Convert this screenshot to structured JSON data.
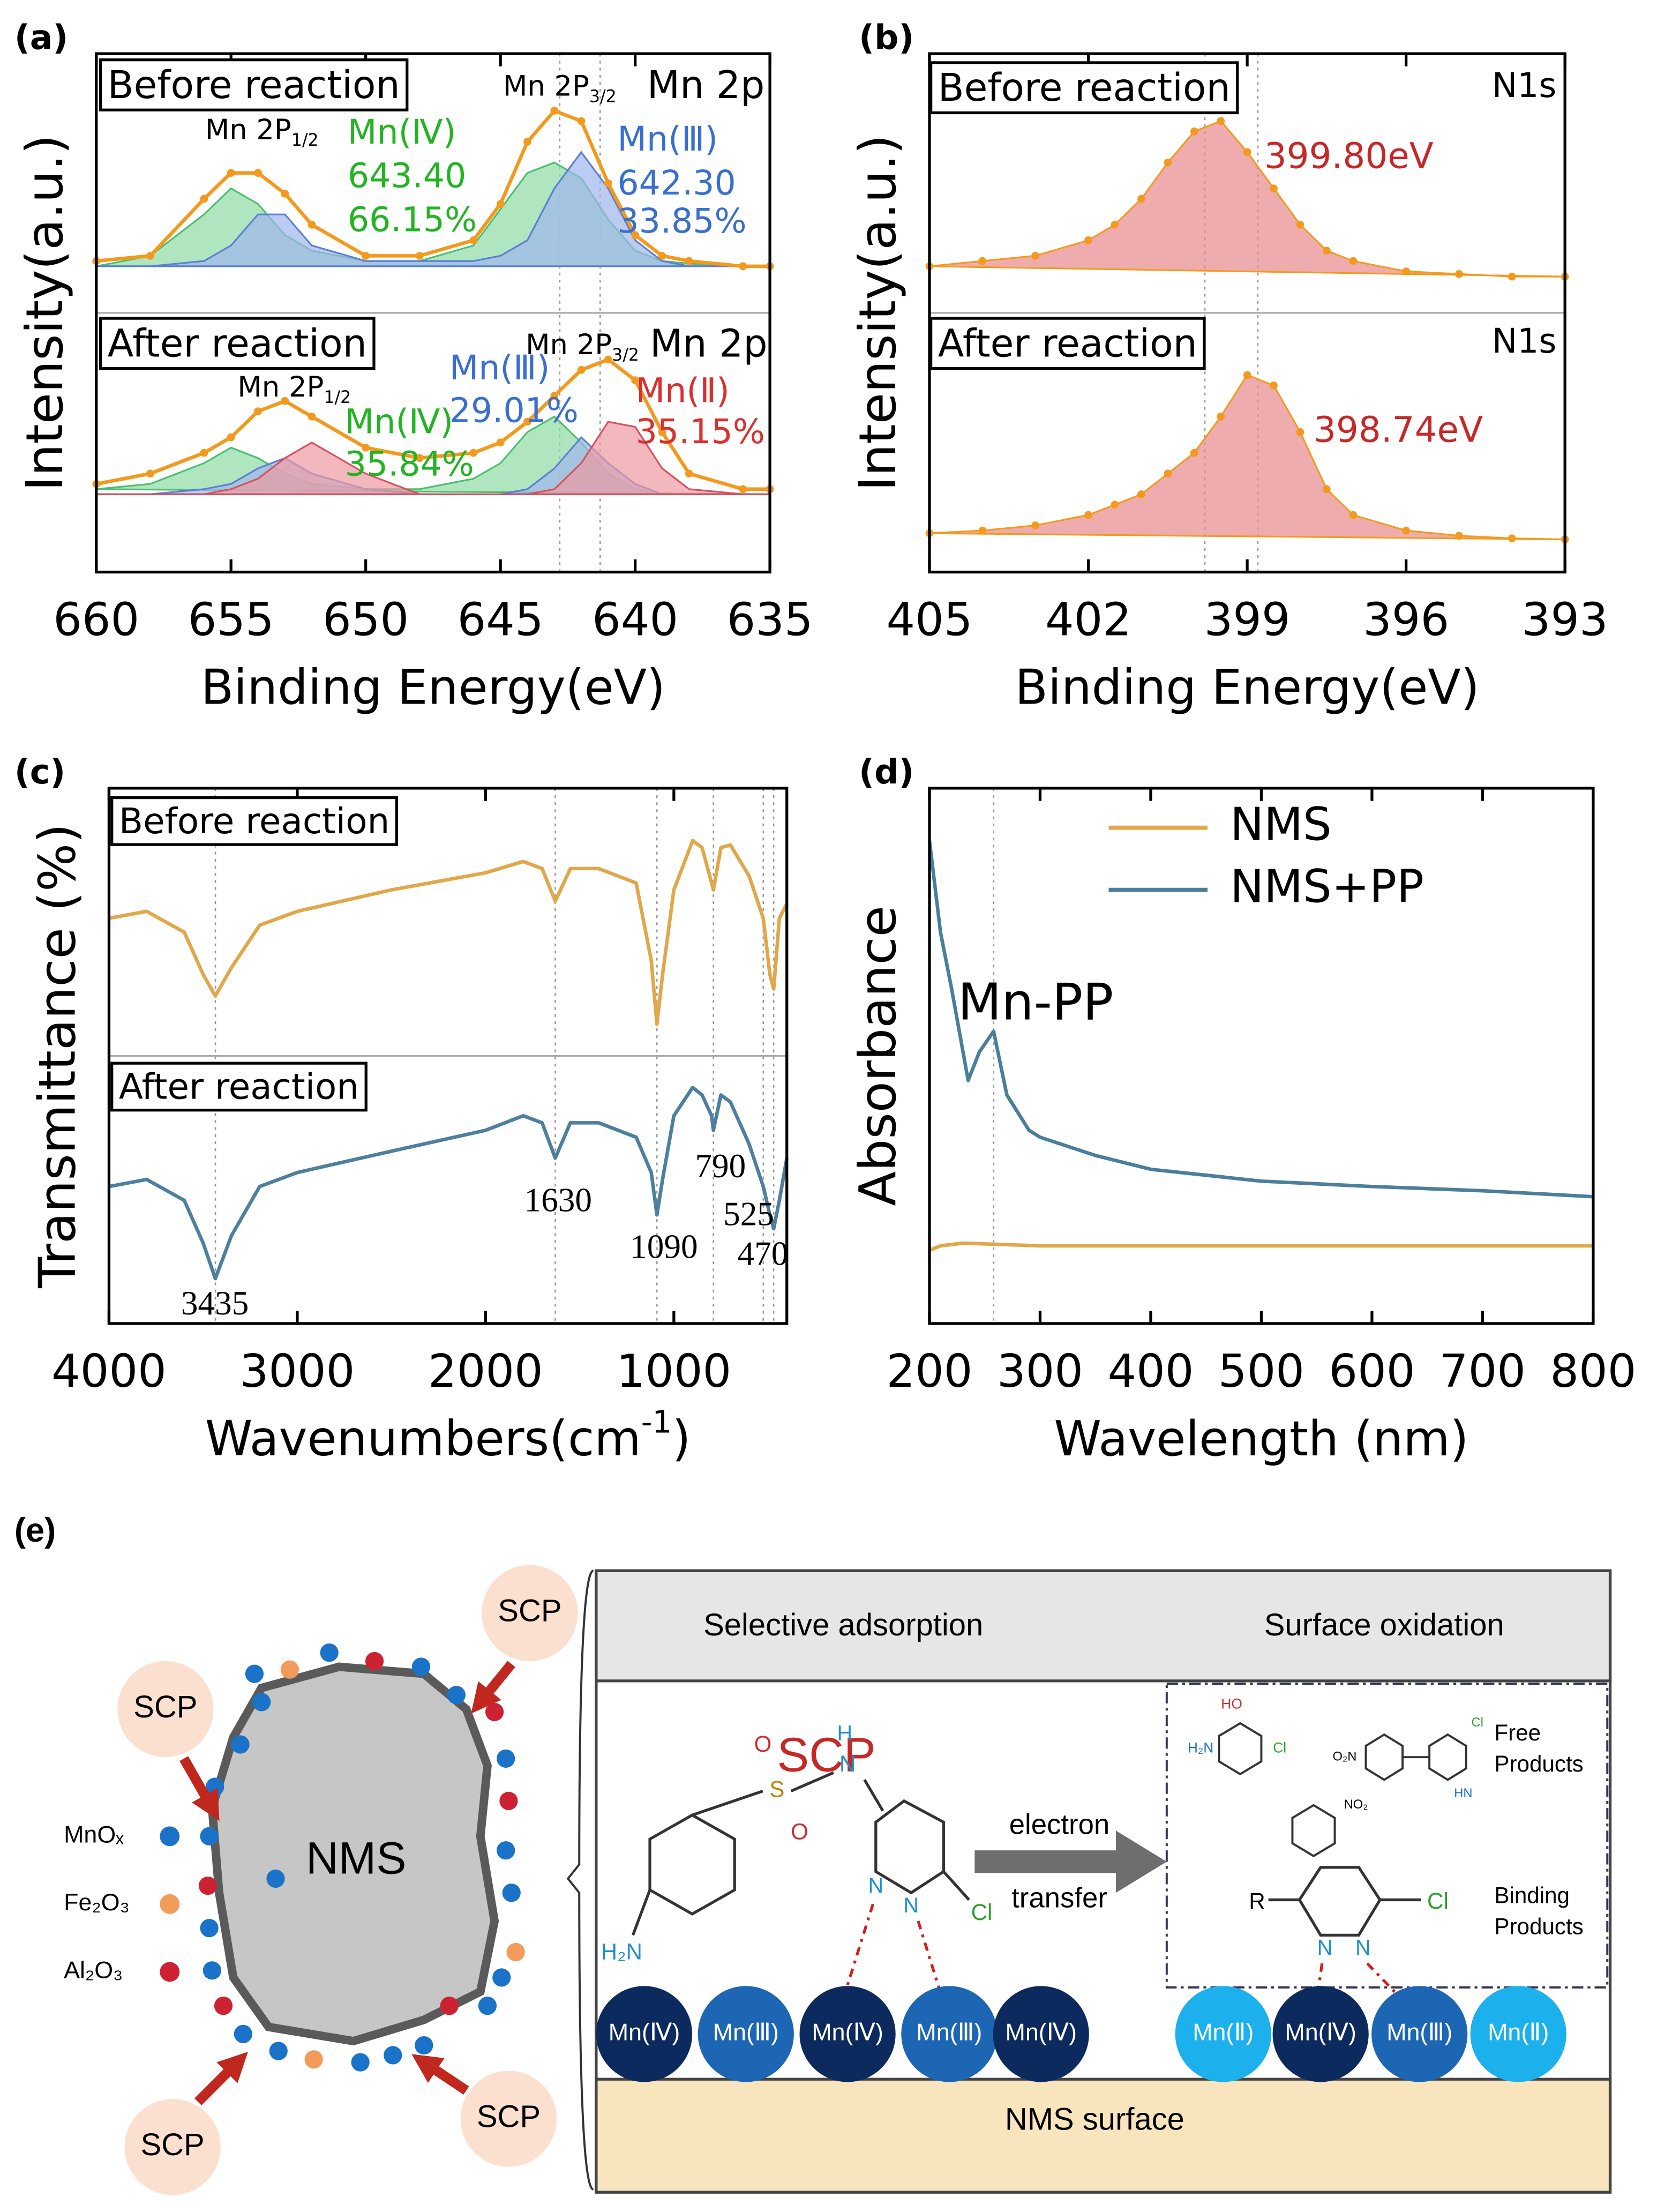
{
  "chart_data": [
    {
      "type": "area",
      "panel_label": "(a)",
      "xlabel": "Binding Energy(eV)",
      "ylabel": "Intensity(a.u.)",
      "xlim": [
        660,
        635
      ],
      "xticks": [
        660,
        655,
        650,
        645,
        640,
        635
      ],
      "ylim": [
        0,
        100
      ],
      "split": true,
      "ref_lines": [
        642.8,
        641.3
      ],
      "x": [
        660,
        658,
        656,
        655,
        654,
        653,
        652,
        650,
        648,
        646,
        645,
        644,
        643,
        642,
        641,
        640,
        639,
        638,
        636,
        635
      ],
      "series": [
        {
          "color": "#4cbf6e",
          "fill": "#8fdca4",
          "values": [
            59,
            61,
            69,
            74,
            71,
            65,
            62,
            60,
            60,
            63,
            70,
            77,
            79,
            76,
            68,
            62,
            60,
            59.5,
            59,
            59
          ]
        },
        {
          "color": "#5a7fd6",
          "fill": "#9fb5ec",
          "values": [
            59,
            59,
            60,
            63,
            69,
            69,
            63,
            60,
            60,
            60,
            61,
            64,
            74,
            81,
            74,
            64,
            60,
            59,
            59,
            59
          ]
        },
        {
          "color": "#f39a1e",
          "markers": true,
          "values": [
            60,
            61,
            72,
            77,
            77,
            73,
            67,
            61,
            61,
            64,
            71,
            83,
            89,
            87,
            75,
            65,
            61,
            60,
            59,
            59
          ]
        },
        {
          "color": "#4cbf6e",
          "fill": "#8fdca4",
          "values": [
            16,
            17,
            21,
            24,
            22,
            19,
            17,
            16,
            16,
            18,
            21,
            27,
            30,
            25,
            19,
            16,
            15,
            15,
            15,
            15
          ]
        },
        {
          "color": "#5a7fd6",
          "fill": "#9fb5ec",
          "values": [
            15,
            15,
            16,
            17,
            20,
            22,
            19,
            16,
            15,
            15,
            15,
            16,
            20,
            26,
            21,
            17,
            15,
            15,
            15,
            15
          ]
        },
        {
          "color": "#d9505e",
          "fill": "#ec9aa3",
          "values": [
            15,
            15,
            15,
            16,
            18,
            22,
            25,
            19,
            15,
            15,
            15,
            15,
            16,
            21,
            29,
            28,
            20,
            16,
            15,
            15
          ]
        },
        {
          "color": "#f39a1e",
          "markers": true,
          "values": [
            17,
            19,
            23,
            26,
            31,
            33,
            30,
            24,
            22,
            23,
            25,
            29,
            34,
            39,
            41,
            37,
            27,
            19,
            16,
            16
          ]
        }
      ],
      "annotations": [
        {
          "text": "Before reaction",
          "color": "#000000",
          "boxed": true
        },
        {
          "text": "Mn 2P",
          "sub": "1/2",
          "color": "#000000"
        },
        {
          "text": "Mn 2P",
          "sub": "3/2",
          "color": "#000000"
        },
        {
          "text": "Mn 2p",
          "color": "#000000"
        },
        {
          "text": "Mn(Ⅳ)",
          "color": "#22b422"
        },
        {
          "text": "643.40",
          "color": "#22b422"
        },
        {
          "text": "66.15%",
          "color": "#22b422"
        },
        {
          "text": "Mn(Ⅲ)",
          "color": "#3a6fd0"
        },
        {
          "text": "642.30",
          "color": "#3a6fd0"
        },
        {
          "text": "33.85%",
          "color": "#3a6fd0"
        },
        {
          "text": "After reaction",
          "color": "#000000",
          "boxed": true
        },
        {
          "text": "Mn 2P",
          "sub": "1/2",
          "color": "#000000"
        },
        {
          "text": "Mn 2P",
          "sub": "3/2",
          "color": "#000000"
        },
        {
          "text": "Mn 2p",
          "color": "#000000"
        },
        {
          "text": "Mn(Ⅳ)",
          "color": "#22b422"
        },
        {
          "text": "35.84%",
          "color": "#22b422"
        },
        {
          "text": "Mn(Ⅲ)",
          "color": "#3a6fd0"
        },
        {
          "text": "29.01%",
          "color": "#3a6fd0"
        },
        {
          "text": "Mn(Ⅱ)",
          "color": "#d93030"
        },
        {
          "text": "35.15%",
          "color": "#d93030"
        }
      ]
    },
    {
      "type": "area",
      "panel_label": "(b)",
      "xlabel": "Binding Energy(eV)",
      "ylabel": "Intensity(a.u.)",
      "xlim": [
        405,
        393
      ],
      "xticks": [
        405,
        402,
        399,
        396,
        393
      ],
      "ylim": [
        0,
        100
      ],
      "split": true,
      "ref_lines": [
        399.8,
        398.8
      ],
      "x": [
        405,
        404,
        403,
        402,
        401.5,
        401,
        400.5,
        400,
        399.5,
        399,
        398.5,
        398,
        397.5,
        397,
        396,
        395,
        394,
        393
      ],
      "series": [
        {
          "color": "#f39a1e",
          "fill": "#e8898b",
          "markers": true,
          "values": [
            59,
            60,
            61,
            64,
            67,
            72,
            79,
            85,
            87,
            81,
            74,
            67,
            62,
            60,
            58,
            57.5,
            57,
            57
          ]
        },
        {
          "color": "#f39a1e",
          "fill": "#e8898b",
          "markers": true,
          "values": [
            7.5,
            8,
            9,
            11,
            13,
            15,
            19,
            23,
            30,
            38,
            36,
            27,
            16,
            11,
            8,
            7,
            6.5,
            6.3
          ]
        }
      ],
      "annotations": [
        {
          "text": "Before reaction",
          "color": "#000000",
          "boxed": true
        },
        {
          "text": "N1s",
          "color": "#000000"
        },
        {
          "text": "399.80eV",
          "color": "#c62828"
        },
        {
          "text": "After reaction",
          "color": "#000000",
          "boxed": true
        },
        {
          "text": "N1s",
          "color": "#000000"
        },
        {
          "text": "398.74eV",
          "color": "#c62828"
        }
      ]
    },
    {
      "type": "line",
      "panel_label": "(c)",
      "xlabel": [
        "Wavenumbers(cm",
        "-1",
        ")"
      ],
      "ylabel": "Transmittance (%)",
      "xlim": [
        4000,
        400
      ],
      "xticks": [
        4000,
        3000,
        2000,
        1000
      ],
      "ylim": [
        0,
        100
      ],
      "split": true,
      "ref_lines": [
        3435,
        1630,
        1090,
        790,
        525,
        470
      ],
      "x": [
        4000,
        3800,
        3600,
        3500,
        3435,
        3350,
        3200,
        3000,
        2500,
        2000,
        1800,
        1700,
        1630,
        1550,
        1400,
        1200,
        1120,
        1090,
        1060,
        1000,
        900,
        850,
        800,
        790,
        750,
        700,
        600,
        525,
        490,
        470,
        440,
        400
      ],
      "series": [
        {
          "color": "#e0a84a",
          "values": [
            75.7,
            77.0,
            73.1,
            65.2,
            61.2,
            66.5,
            74.4,
            77.0,
            81.0,
            84.2,
            86.3,
            85.0,
            78.9,
            85.0,
            85.0,
            82.3,
            67.8,
            55.9,
            65.2,
            81.0,
            90.2,
            88.9,
            82.3,
            81.0,
            88.9,
            89.4,
            83.6,
            75.7,
            65.2,
            62.5,
            75.7,
            78.4
          ]
        },
        {
          "color": "#4d7f9e",
          "values": [
            25.6,
            26.9,
            23.0,
            15.0,
            8.4,
            16.4,
            25.6,
            28.2,
            32.2,
            36.1,
            38.8,
            37.5,
            30.9,
            37.5,
            37.5,
            34.8,
            28.2,
            20.3,
            26.9,
            38.8,
            44.1,
            42.7,
            38.8,
            36.1,
            42.7,
            41.4,
            33.5,
            25.6,
            20.3,
            17.7,
            23.0,
            30.9
          ]
        }
      ],
      "annotations": [
        {
          "text": "Before reaction",
          "color": "#000000",
          "boxed": true
        },
        {
          "text": "After reaction",
          "color": "#000000",
          "boxed": true
        },
        {
          "text": "3435",
          "color": "#000000",
          "font": "serif"
        },
        {
          "text": "1630",
          "color": "#000000",
          "font": "serif"
        },
        {
          "text": "1090",
          "color": "#000000",
          "font": "serif"
        },
        {
          "text": "790",
          "color": "#000000",
          "font": "serif"
        },
        {
          "text": "525",
          "color": "#000000",
          "font": "serif"
        },
        {
          "text": "470",
          "color": "#000000",
          "font": "serif"
        }
      ]
    },
    {
      "type": "line",
      "panel_label": "(d)",
      "xlabel": "Wavelength (nm)",
      "ylabel": "Absorbance",
      "xlim": [
        200,
        800
      ],
      "xticks": [
        200,
        300,
        400,
        500,
        600,
        700,
        800
      ],
      "ylim": [
        0,
        100
      ],
      "ref_lines": [
        258
      ],
      "legend": "upper center",
      "series": [
        {
          "name": "NMS",
          "color": "#e0a84a",
          "x": [
            200,
            210,
            230,
            300,
            400,
            500,
            600,
            700,
            800
          ],
          "values": [
            13.7,
            14.5,
            15.0,
            14.5,
            14.5,
            14.5,
            14.5,
            14.5,
            14.5
          ]
        },
        {
          "name": "NMS+PP",
          "color": "#4a7f9b",
          "x": [
            200,
            210,
            220,
            235,
            245,
            258,
            270,
            290,
            300,
            350,
            400,
            500,
            600,
            700,
            800
          ],
          "values": [
            90.2,
            73.1,
            62.5,
            45.4,
            50.7,
            54.6,
            42.7,
            36.1,
            34.8,
            31.4,
            28.8,
            26.6,
            25.6,
            24.8,
            23.7
          ]
        }
      ],
      "annotations": [
        {
          "text": "Mn-PP",
          "color": "#000000"
        }
      ]
    }
  ],
  "diagram": {
    "label": "(e)",
    "particle": "NMS",
    "scp": [
      "SCP",
      "SCP",
      "SCP",
      "SCP"
    ],
    "legend": [
      "MnOₓ",
      "Fe₂O₃",
      "Al₂O₃"
    ],
    "headers": [
      "Selective adsorption",
      "Surface oxidation"
    ],
    "molecule": "SCP",
    "scp_atoms": [
      "O",
      "S",
      "O",
      "H",
      "N",
      "N",
      "N",
      "Cl",
      "H₂N"
    ],
    "arrow_text": [
      "electron",
      "transfer"
    ],
    "product_atoms": [
      "HO",
      "H₂N",
      "Cl",
      "O₂N",
      "Cl",
      "HN",
      "NO₂",
      "R",
      "N",
      "N",
      "Cl"
    ],
    "product_labels": [
      "Free",
      "Products",
      "Binding",
      "Products"
    ],
    "sites_left": [
      "Mn(Ⅳ)",
      "Mn(Ⅲ)",
      "Mn(Ⅳ)",
      "Mn(Ⅲ)",
      "Mn(Ⅳ)"
    ],
    "sites_right": [
      "Mn(Ⅱ)",
      "Mn(Ⅳ)",
      "Mn(Ⅲ)",
      "Mn(Ⅱ)"
    ],
    "surface": "NMS surface"
  }
}
